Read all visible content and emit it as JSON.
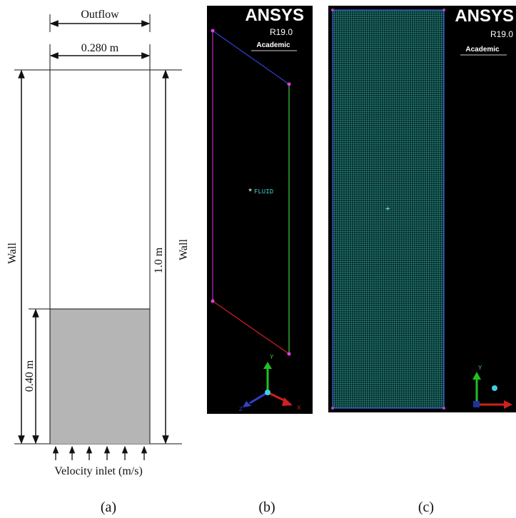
{
  "panels": [
    {
      "label": "(a)",
      "top_label": "Outflow",
      "width_label": "0.280 m",
      "left_label": "Wall",
      "height_label": "1.0 m",
      "right_label": "Wall",
      "bed_height_label": "0.40 m",
      "bottom_label": "Velocity inlet (m/s)"
    },
    {
      "label": "(b)",
      "logo": "ANSYS",
      "version": "R19.0",
      "edition": "Academic",
      "zone_label": "FLUID",
      "axes": [
        "Y",
        "X",
        "Z"
      ]
    },
    {
      "label": "(c)",
      "logo": "ANSYS",
      "version": "R19.0",
      "edition": "Academic",
      "axes": [
        "Y"
      ]
    }
  ]
}
